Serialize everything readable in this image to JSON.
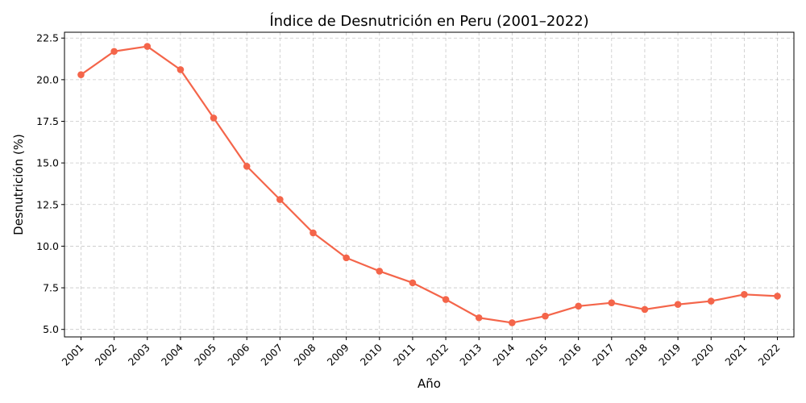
{
  "chart_data": {
    "type": "line",
    "title": "Índice de Desnutrición en Peru (2001–2022)",
    "xlabel": "Año",
    "ylabel": "Desnutrición (%)",
    "categories": [
      "2001",
      "2002",
      "2003",
      "2004",
      "2005",
      "2006",
      "2007",
      "2008",
      "2009",
      "2010",
      "2011",
      "2012",
      "2013",
      "2014",
      "2015",
      "2016",
      "2017",
      "2018",
      "2019",
      "2020",
      "2021",
      "2022"
    ],
    "series": [
      {
        "values": [
          20.3,
          21.7,
          22.0,
          20.6,
          17.7,
          14.8,
          12.8,
          10.8,
          9.3,
          8.5,
          7.8,
          6.8,
          5.7,
          5.4,
          5.8,
          6.4,
          6.6,
          6.2,
          6.5,
          6.7,
          7.1,
          7.0
        ],
        "color": "#f4654a"
      }
    ],
    "ylim": [
      4.55,
      22.85
    ],
    "yticks": [
      5.0,
      7.5,
      10.0,
      12.5,
      15.0,
      17.5,
      20.0,
      22.5
    ],
    "ytick_labels": [
      "5.0",
      "7.5",
      "10.0",
      "12.5",
      "15.0",
      "17.5",
      "20.0",
      "22.5"
    ],
    "grid": true,
    "legend": "none",
    "x_tick_rotation": 45
  }
}
